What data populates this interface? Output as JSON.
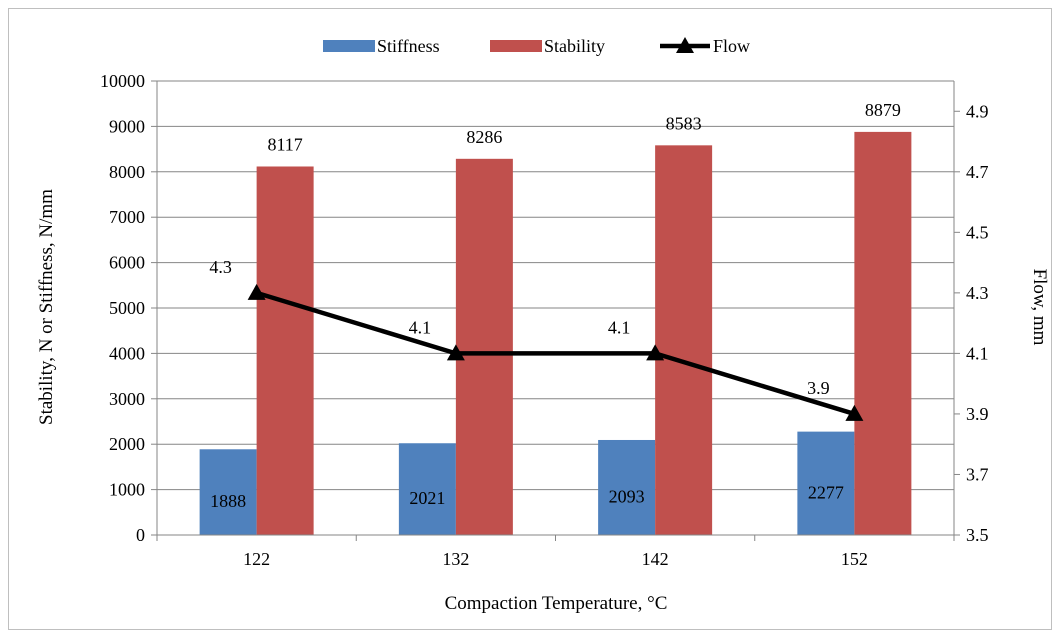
{
  "chart_data": {
    "type": "bar",
    "title": "",
    "xlabel": "Compaction Temperature, °C",
    "ylabel": "Stability, N or Stiffness, N/mm",
    "y2label": "Flow, mm",
    "categories": [
      "122",
      "132",
      "142",
      "152"
    ],
    "ylim": [
      0,
      10000
    ],
    "y_ticks": [
      "0",
      "1000",
      "2000",
      "3000",
      "4000",
      "5000",
      "6000",
      "7000",
      "8000",
      "9000",
      "10000"
    ],
    "y2lim": [
      3.5,
      5.0
    ],
    "y2_ticks": [
      "3.5",
      "3.7",
      "3.9",
      "4.1",
      "4.3",
      "4.5",
      "4.7",
      "4.9"
    ],
    "legend_position": "top",
    "series": [
      {
        "name": "Stiffness",
        "type": "bar",
        "axis": "left",
        "color": "#4f81bd",
        "values": [
          1888,
          2021,
          2093,
          2277
        ],
        "labels": [
          "1888",
          "2021",
          "2093",
          "2277"
        ]
      },
      {
        "name": "Stability",
        "type": "bar",
        "axis": "left",
        "color": "#c0504d",
        "values": [
          8117,
          8286,
          8583,
          8879
        ],
        "labels": [
          "8117",
          "8286",
          "8583",
          "8879"
        ]
      },
      {
        "name": "Flow",
        "type": "line",
        "axis": "right",
        "color": "#000000",
        "marker": "triangle",
        "values": [
          4.3,
          4.1,
          4.1,
          3.9
        ],
        "labels": [
          "4.3",
          "4.1",
          "4.1",
          "3.9"
        ]
      }
    ]
  }
}
